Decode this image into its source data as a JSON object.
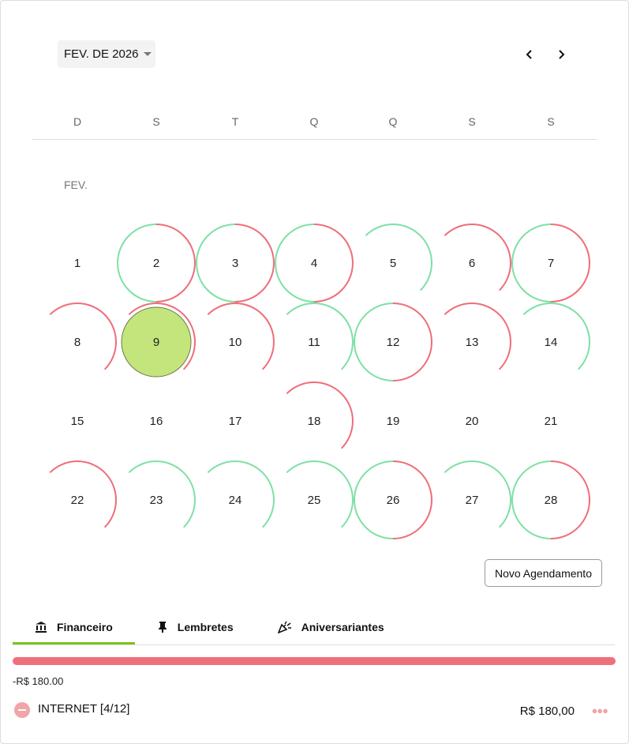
{
  "header": {
    "month_label": "FEV. DE 2026",
    "prev_icon": "chevron-left-icon",
    "next_icon": "chevron-right-icon"
  },
  "weekdays": [
    "D",
    "S",
    "T",
    "Q",
    "Q",
    "S",
    "S"
  ],
  "month_short": "FEV.",
  "colors": {
    "income": "#7ee0a5",
    "expense": "#ee6e7a",
    "selected_fill": "#c3e57c",
    "tab_accent": "#7cc31f"
  },
  "selected_day": 9,
  "first_weekday": 0,
  "days": [
    {
      "d": "1",
      "ring": "none"
    },
    {
      "d": "2",
      "ring": "both"
    },
    {
      "d": "3",
      "ring": "both"
    },
    {
      "d": "4",
      "ring": "both"
    },
    {
      "d": "5",
      "ring": "income"
    },
    {
      "d": "6",
      "ring": "expense"
    },
    {
      "d": "7",
      "ring": "both"
    },
    {
      "d": "8",
      "ring": "expense"
    },
    {
      "d": "9",
      "ring": "expense"
    },
    {
      "d": "10",
      "ring": "expense"
    },
    {
      "d": "11",
      "ring": "income"
    },
    {
      "d": "12",
      "ring": "both"
    },
    {
      "d": "13",
      "ring": "expense"
    },
    {
      "d": "14",
      "ring": "income"
    },
    {
      "d": "15",
      "ring": "none"
    },
    {
      "d": "16",
      "ring": "none"
    },
    {
      "d": "17",
      "ring": "none"
    },
    {
      "d": "18",
      "ring": "expense"
    },
    {
      "d": "19",
      "ring": "none"
    },
    {
      "d": "20",
      "ring": "none"
    },
    {
      "d": "21",
      "ring": "none"
    },
    {
      "d": "22",
      "ring": "expense"
    },
    {
      "d": "23",
      "ring": "income"
    },
    {
      "d": "24",
      "ring": "income"
    },
    {
      "d": "25",
      "ring": "income"
    },
    {
      "d": "26",
      "ring": "both"
    },
    {
      "d": "27",
      "ring": "income"
    },
    {
      "d": "28",
      "ring": "both"
    }
  ],
  "new_button": "Novo Agendamento",
  "tabs": [
    {
      "label": "Financeiro",
      "icon": "bank-icon",
      "active": true
    },
    {
      "label": "Lembretes",
      "icon": "pin-icon",
      "active": false
    },
    {
      "label": "Aniversariantes",
      "icon": "party-popper-icon",
      "active": false
    }
  ],
  "finance": {
    "expense_share_percent": 100,
    "total": "-R$ 180.00",
    "items": [
      {
        "name": "INTERNET [4/12]",
        "amount": "R$ 180,00",
        "type": "expense"
      }
    ]
  }
}
